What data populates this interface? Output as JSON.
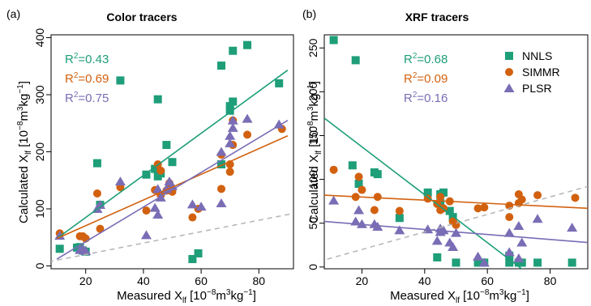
{
  "panel_labels": [
    "(a)",
    "(b)"
  ],
  "colors": {
    "nnls": "#1e9e79",
    "simmr": "#d2610f",
    "plsr": "#7a6db5",
    "one_to_one": "#b4b4b4",
    "axis": "#000000"
  },
  "chart_data": [
    {
      "type": "scatter",
      "title": "Color tracers",
      "xlabel": "Measured X_lf [10^-8 m^3 kg^-1]",
      "ylabel": "Calculated X_lf [10^-8 m^3 kg^-1]",
      "xlim": [
        8,
        92
      ],
      "ylim": [
        -5,
        405
      ],
      "xticks": [
        20,
        40,
        60,
        80
      ],
      "yticks": [
        0,
        100,
        200,
        300,
        400
      ],
      "grid": false,
      "one_to_one_line": true,
      "stats": [
        {
          "label": "R",
          "sup": "2",
          "value": "=0.43",
          "series": "NNLS"
        },
        {
          "label": "R",
          "sup": "2",
          "value": "=0.69",
          "series": "SIMMR"
        },
        {
          "label": "R",
          "sup": "2",
          "value": "=0.75",
          "series": "PLSR"
        }
      ],
      "series": [
        {
          "name": "NNLS",
          "marker": "square",
          "fit": {
            "x": [
              10,
              90
            ],
            "y": [
              48,
              343
            ]
          },
          "points": [
            [
              11,
              30
            ],
            [
              17,
              32
            ],
            [
              18,
              33
            ],
            [
              19,
              27
            ],
            [
              20,
              25
            ],
            [
              24,
              180
            ],
            [
              25,
              107
            ],
            [
              32,
              325
            ],
            [
              41,
              160
            ],
            [
              44,
              170
            ],
            [
              45,
              292
            ],
            [
              45,
              157
            ],
            [
              46,
              162
            ],
            [
              48,
              212
            ],
            [
              50,
              182
            ],
            [
              57,
              12
            ],
            [
              59,
              22
            ],
            [
              67,
              178
            ],
            [
              67,
              351
            ],
            [
              70,
              280
            ],
            [
              70,
              272
            ],
            [
              71,
              288
            ],
            [
              71,
              377
            ],
            [
              76,
              387
            ],
            [
              87,
              320
            ]
          ]
        },
        {
          "name": "SIMMR",
          "marker": "circle",
          "fit": {
            "x": [
              10,
              90
            ],
            "y": [
              48,
              228
            ]
          },
          "points": [
            [
              11,
              57
            ],
            [
              18,
              52
            ],
            [
              19,
              52
            ],
            [
              20,
              48
            ],
            [
              24,
              127
            ],
            [
              25,
              65
            ],
            [
              32,
              138
            ],
            [
              41,
              97
            ],
            [
              44,
              133
            ],
            [
              45,
              178
            ],
            [
              46,
              124
            ],
            [
              46,
              167
            ],
            [
              48,
              132
            ],
            [
              49,
              145
            ],
            [
              50,
              130
            ],
            [
              57,
              85
            ],
            [
              59,
              100
            ],
            [
              67,
              135
            ],
            [
              67,
              195
            ],
            [
              70,
              165
            ],
            [
              70,
              178
            ],
            [
              71,
              212
            ],
            [
              71,
              255
            ],
            [
              76,
              230
            ],
            [
              88,
              240
            ]
          ]
        },
        {
          "name": "PLSR",
          "marker": "triangle",
          "fit": {
            "x": [
              10,
              90
            ],
            "y": [
              12,
              255
            ]
          },
          "points": [
            [
              11,
              53
            ],
            [
              18,
              28
            ],
            [
              19,
              30
            ],
            [
              20,
              26
            ],
            [
              24,
              100
            ],
            [
              25,
              107
            ],
            [
              32,
              148
            ],
            [
              41,
              54
            ],
            [
              44,
              102
            ],
            [
              45,
              135
            ],
            [
              45,
              90
            ],
            [
              46,
              120
            ],
            [
              48,
              135
            ],
            [
              49,
              148
            ],
            [
              50,
              140
            ],
            [
              57,
              108
            ],
            [
              60,
              104
            ],
            [
              67,
              200
            ],
            [
              67,
              110
            ],
            [
              70,
              228
            ],
            [
              70,
              215
            ],
            [
              71,
              242
            ],
            [
              71,
              255
            ],
            [
              76,
              258
            ],
            [
              87,
              248
            ]
          ]
        }
      ]
    },
    {
      "type": "scatter",
      "title": "XRF tracers",
      "xlabel": "Measured X_lf [10^-8 m^3 kg^-1]",
      "ylabel": "Calculated X_lf [10^-8 m^3 kg^-1]",
      "xlim": [
        8,
        92
      ],
      "ylim": [
        -2,
        265
      ],
      "xticks": [
        20,
        40,
        60,
        80
      ],
      "yticks": [
        0,
        50,
        100,
        150,
        200,
        250
      ],
      "grid": false,
      "one_to_one_line": true,
      "legend": {
        "position": "top-right",
        "entries": [
          "NNLS",
          "SIMMR",
          "PLSR"
        ]
      },
      "stats": [
        {
          "label": "R",
          "sup": "2",
          "value": "=0.68",
          "series": "NNLS"
        },
        {
          "label": "R",
          "sup": "2",
          "value": "=0.09",
          "series": "SIMMR"
        },
        {
          "label": "R",
          "sup": "2",
          "value": "=0.16",
          "series": "PLSR"
        }
      ],
      "series": [
        {
          "name": "NNLS",
          "marker": "square",
          "fit": {
            "x": [
              8,
              72
            ],
            "y": [
              170,
              -5
            ]
          },
          "points": [
            [
              11,
              259
            ],
            [
              17,
              116
            ],
            [
              18,
              236
            ],
            [
              19,
              95
            ],
            [
              24,
              108
            ],
            [
              25,
              106
            ],
            [
              32,
              56
            ],
            [
              41,
              85
            ],
            [
              44,
              11
            ],
            [
              45,
              83
            ],
            [
              45,
              73
            ],
            [
              46,
              85
            ],
            [
              48,
              64
            ],
            [
              49,
              57
            ],
            [
              50,
              5
            ],
            [
              57,
              5
            ],
            [
              59,
              5
            ],
            [
              67,
              5
            ],
            [
              67,
              13
            ],
            [
              70,
              5
            ],
            [
              71,
              5
            ],
            [
              76,
              5
            ],
            [
              87,
              5
            ]
          ]
        },
        {
          "name": "SIMMR",
          "marker": "circle",
          "fit": {
            "x": [
              8,
              92
            ],
            "y": [
              82,
              67
            ]
          },
          "points": [
            [
              11,
              111
            ],
            [
              18,
              80
            ],
            [
              19,
              103
            ],
            [
              20,
              88
            ],
            [
              24,
              65
            ],
            [
              25,
              80
            ],
            [
              32,
              64
            ],
            [
              41,
              78
            ],
            [
              44,
              72
            ],
            [
              45,
              80
            ],
            [
              45,
              65
            ],
            [
              46,
              67
            ],
            [
              48,
              75
            ],
            [
              49,
              52
            ],
            [
              50,
              48
            ],
            [
              57,
              67
            ],
            [
              59,
              68
            ],
            [
              67,
              57
            ],
            [
              67,
              70
            ],
            [
              70,
              73
            ],
            [
              70,
              83
            ],
            [
              71,
              77
            ],
            [
              76,
              82
            ],
            [
              88,
              79
            ]
          ]
        },
        {
          "name": "PLSR",
          "marker": "triangle",
          "fit": {
            "x": [
              8,
              92
            ],
            "y": [
              52,
              28
            ]
          },
          "points": [
            [
              11,
              76
            ],
            [
              18,
              52
            ],
            [
              19,
              65
            ],
            [
              20,
              49
            ],
            [
              24,
              49
            ],
            [
              25,
              46
            ],
            [
              32,
              42
            ],
            [
              41,
              43
            ],
            [
              44,
              30
            ],
            [
              45,
              44
            ],
            [
              45,
              40
            ],
            [
              46,
              42
            ],
            [
              48,
              28
            ],
            [
              49,
              23
            ],
            [
              50,
              39
            ],
            [
              57,
              12
            ],
            [
              59,
              5
            ],
            [
              67,
              39
            ],
            [
              67,
              17
            ],
            [
              70,
              10
            ],
            [
              70,
              47
            ],
            [
              71,
              28
            ],
            [
              76,
              55
            ],
            [
              87,
              45
            ]
          ]
        }
      ]
    }
  ]
}
